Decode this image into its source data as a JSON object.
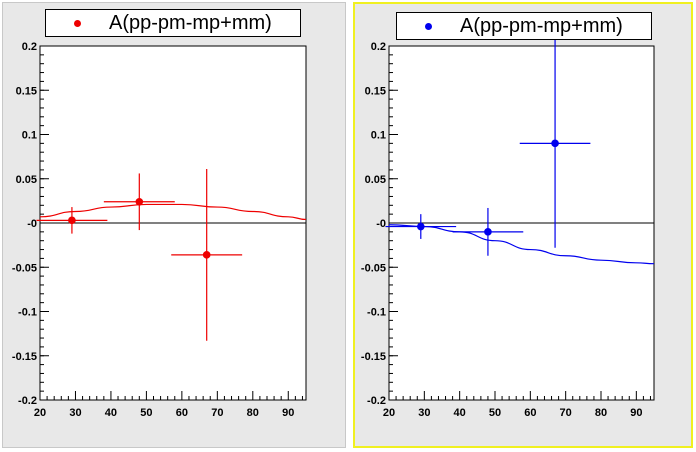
{
  "colors": {
    "left": "#ee0000",
    "right": "#0000ee",
    "axis": "#000000",
    "frame_bg": "#ffffff",
    "pad_bg": "#e8e8e8",
    "highlight": "#f0f020"
  },
  "chart_data": [
    {
      "type": "scatter",
      "title": "",
      "legend": {
        "label": "A(pp-pm-mp+mm)",
        "placement": "top"
      },
      "xlabel": "",
      "ylabel": "",
      "xlim": [
        20,
        95
      ],
      "ylim": [
        -0.2,
        0.2
      ],
      "x_ticks": [
        "20",
        "30",
        "40",
        "50",
        "60",
        "70",
        "80",
        "90"
      ],
      "y_ticks": [
        "0.2",
        "0.15",
        "0.1",
        "0.05",
        "-0",
        "-0.05",
        "-0.1",
        "-0.15",
        "-0.2"
      ],
      "series": [
        {
          "points": [
            {
              "x": 29,
              "y": 0.003,
              "xerr": 10,
              "yerr": 0.015
            },
            {
              "x": 48,
              "y": 0.024,
              "xerr": 10,
              "yerr": 0.032
            },
            {
              "x": 67,
              "y": -0.036,
              "xerr": 10,
              "yerr": 0.097
            }
          ]
        }
      ],
      "fit_curve": {
        "x": [
          20,
          30,
          40,
          50,
          60,
          70,
          80,
          90,
          95
        ],
        "y": [
          0.007,
          0.013,
          0.018,
          0.021,
          0.021,
          0.018,
          0.013,
          0.007,
          0.004
        ]
      },
      "zero_line": true
    },
    {
      "type": "scatter",
      "title": "",
      "legend": {
        "label": "A(pp-pm-mp+mm)",
        "placement": "top"
      },
      "xlabel": "",
      "ylabel": "",
      "xlim": [
        20,
        95
      ],
      "ylim": [
        -0.2,
        0.2
      ],
      "x_ticks": [
        "20",
        "30",
        "40",
        "50",
        "60",
        "70",
        "80",
        "90"
      ],
      "y_ticks": [
        "0.2",
        "0.15",
        "0.1",
        "0.05",
        "-0",
        "-0.05",
        "-0.1",
        "-0.15",
        "-0.2"
      ],
      "series": [
        {
          "points": [
            {
              "x": 29,
              "y": -0.004,
              "xerr": 10,
              "yerr": 0.014
            },
            {
              "x": 48,
              "y": -0.01,
              "xerr": 10,
              "yerr": 0.027
            },
            {
              "x": 67,
              "y": 0.09,
              "xerr": 10,
              "yerr": 0.118
            }
          ]
        }
      ],
      "fit_curve": {
        "x": [
          20,
          30,
          40,
          50,
          60,
          70,
          80,
          90,
          95
        ],
        "y": [
          -0.002,
          -0.004,
          -0.01,
          -0.02,
          -0.03,
          -0.037,
          -0.042,
          -0.045,
          -0.046
        ]
      },
      "zero_line": true
    }
  ]
}
